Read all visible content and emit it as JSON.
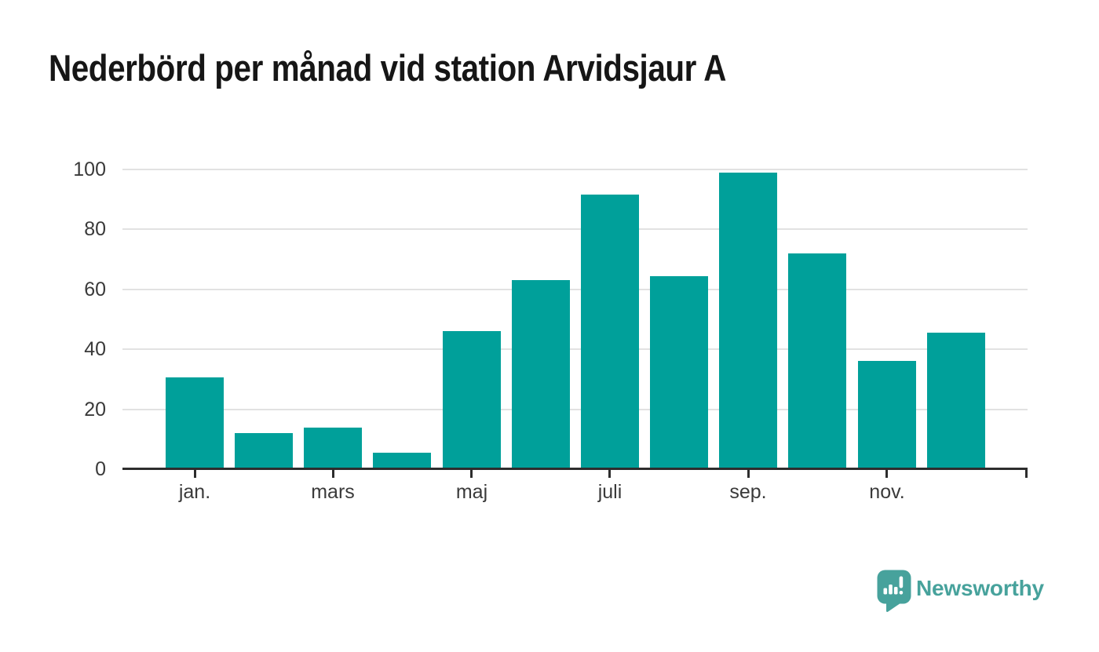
{
  "title": "Nederbörd per månad vid station Arvidsjaur A",
  "branding": {
    "logo_text": "Newsworthy",
    "logo_icon": "speech-bubble-with-bar-chart-and-exclamation"
  },
  "colors": {
    "bar": "#00a09a",
    "gridline": "#e2e2e2",
    "axis_line": "#2d2d2d",
    "tick_label": "#3a3a3a",
    "title_text": "#161616",
    "brand_teal": "#47a29c",
    "background": "#ffffff"
  },
  "chart_data": {
    "type": "bar",
    "title": "Nederbörd per månad vid station Arvidsjaur A",
    "x_months": [
      1,
      2,
      3,
      4,
      5,
      6,
      7,
      8,
      9,
      10,
      11,
      12
    ],
    "values": [
      30.5,
      12,
      14,
      5.5,
      46,
      63,
      91.5,
      64.5,
      99,
      72,
      36,
      45.5
    ],
    "x_tick_labels": [
      "jan.",
      "mars",
      "maj",
      "juli",
      "sep.",
      "nov."
    ],
    "x_tick_month_positions": [
      1,
      3,
      5,
      7,
      9,
      11
    ],
    "y_ticks": [
      0,
      20,
      40,
      60,
      80,
      100
    ],
    "y_tick_labels": [
      "0",
      "20",
      "40",
      "60",
      "80",
      "100"
    ],
    "ylim": [
      0,
      100
    ],
    "xlabel": "",
    "ylabel": "",
    "grid": "horizontal-only",
    "legend_position": "none",
    "series_color": "#00a09a"
  }
}
